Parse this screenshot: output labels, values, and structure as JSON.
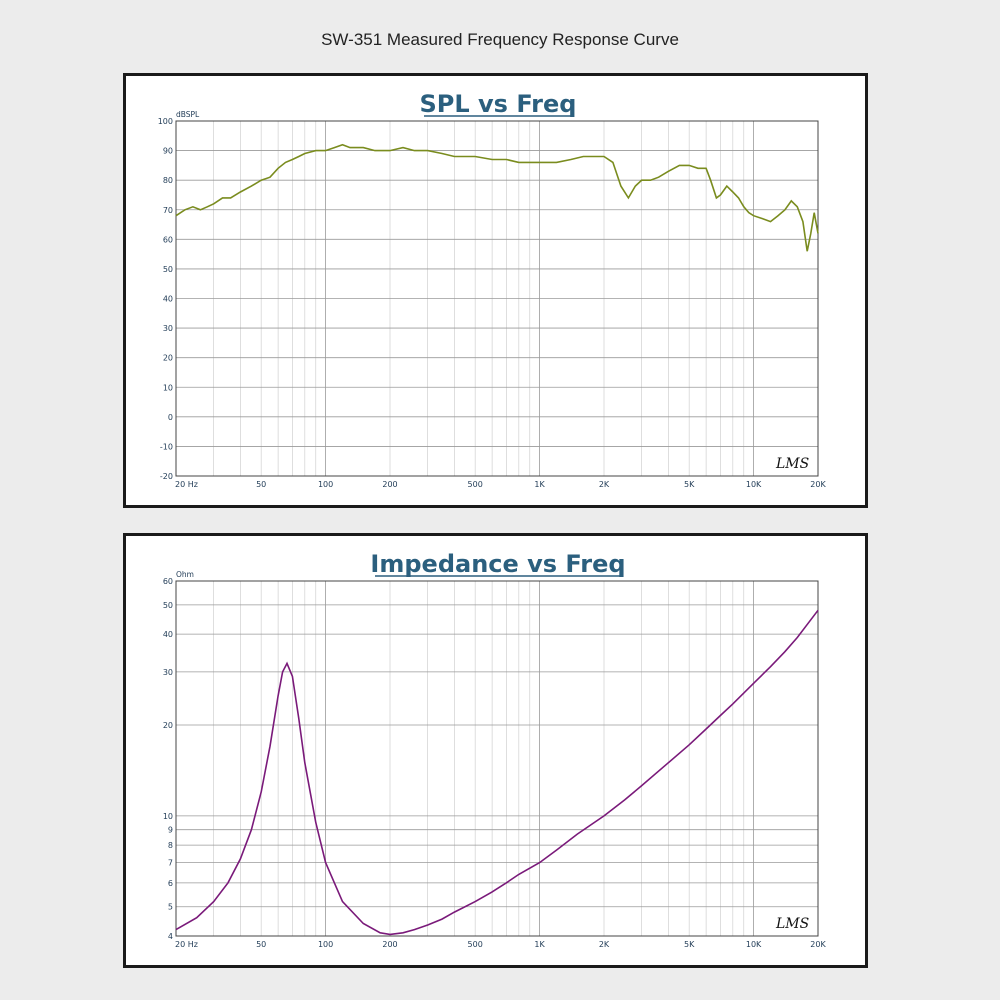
{
  "page_title": "SW-351 Measured Frequency Response Curve",
  "logo_text": "LMS",
  "colors": {
    "spl_curve": "#7a8c1e",
    "impedance_curve": "#7a1a7a",
    "title": "#2b5f7e",
    "tick_labels": "#1f3a55"
  },
  "chart_data": [
    {
      "type": "line",
      "title": "SPL vs Freq",
      "ylabel": "dBSPL",
      "xscale": "log",
      "xlim": [
        20,
        20000
      ],
      "ylim": [
        -20,
        100
      ],
      "grid": true,
      "x_tick_labels": [
        "20 Hz",
        "50",
        "100",
        "200",
        "500",
        "1K",
        "2K",
        "5K",
        "10K",
        "20K"
      ],
      "x_tick_values": [
        20,
        50,
        100,
        200,
        500,
        1000,
        2000,
        5000,
        10000,
        20000
      ],
      "y_tick_labels": [
        "100",
        "90",
        "80",
        "70",
        "60",
        "50",
        "40",
        "30",
        "20",
        "10",
        "0",
        "-10",
        "-20"
      ],
      "y_tick_values": [
        100,
        90,
        80,
        70,
        60,
        50,
        40,
        30,
        20,
        10,
        0,
        -10,
        -20
      ],
      "series": [
        {
          "x": [
            20,
            22,
            24,
            26,
            28,
            30,
            33,
            36,
            40,
            45,
            50,
            55,
            60,
            65,
            70,
            75,
            80,
            90,
            100,
            110,
            120,
            130,
            150,
            170,
            200,
            230,
            260,
            300,
            350,
            400,
            450,
            500,
            600,
            700,
            800,
            900,
            1000,
            1200,
            1400,
            1600,
            1800,
            2000,
            2200,
            2400,
            2600,
            2800,
            3000,
            3300,
            3600,
            4000,
            4500,
            5000,
            5500,
            6000,
            6300,
            6700,
            7000,
            7500,
            8000,
            8500,
            9000,
            9500,
            10000,
            11000,
            12000,
            13000,
            14000,
            15000,
            16000,
            17000,
            17800,
            18500,
            19200,
            20000
          ],
          "y": [
            68,
            70,
            71,
            70,
            71,
            72,
            74,
            74,
            76,
            78,
            80,
            81,
            84,
            86,
            87,
            88,
            89,
            90,
            90,
            91,
            92,
            91,
            91,
            90,
            90,
            91,
            90,
            90,
            89,
            88,
            88,
            88,
            87,
            87,
            86,
            86,
            86,
            86,
            87,
            88,
            88,
            88,
            86,
            78,
            74,
            78,
            80,
            80,
            81,
            83,
            85,
            85,
            84,
            84,
            80,
            74,
            75,
            78,
            76,
            74,
            71,
            69,
            68,
            67,
            66,
            68,
            70,
            73,
            71,
            66,
            56,
            62,
            69,
            62
          ]
        }
      ]
    },
    {
      "type": "line",
      "title": "Impedance vs Freq",
      "ylabel": "Ohm",
      "xscale": "log",
      "yscale": "log",
      "xlim": [
        20,
        20000
      ],
      "ylim": [
        4,
        60
      ],
      "grid": true,
      "x_tick_labels": [
        "20 Hz",
        "50",
        "100",
        "200",
        "500",
        "1K",
        "2K",
        "5K",
        "10K",
        "20K"
      ],
      "x_tick_values": [
        20,
        50,
        100,
        200,
        500,
        1000,
        2000,
        5000,
        10000,
        20000
      ],
      "y_tick_labels": [
        "60",
        "50",
        "40",
        "30",
        "20",
        "10",
        "9",
        "8",
        "7",
        "6",
        "5",
        "4"
      ],
      "y_tick_values": [
        60,
        50,
        40,
        30,
        20,
        10,
        9,
        8,
        7,
        6,
        5,
        4
      ],
      "series": [
        {
          "x": [
            20,
            25,
            30,
            35,
            40,
            45,
            50,
            55,
            60,
            63,
            66,
            70,
            75,
            80,
            90,
            100,
            120,
            150,
            180,
            200,
            230,
            260,
            300,
            350,
            400,
            500,
            600,
            700,
            800,
            1000,
            1200,
            1500,
            2000,
            2500,
            3000,
            4000,
            5000,
            6000,
            7000,
            8000,
            10000,
            12000,
            14000,
            16000,
            18000,
            20000
          ],
          "y": [
            4.2,
            4.6,
            5.2,
            6.0,
            7.2,
            9.0,
            12.0,
            17.0,
            25.0,
            30.0,
            32.0,
            29.0,
            21.0,
            15.0,
            9.5,
            7.0,
            5.2,
            4.4,
            4.1,
            4.05,
            4.1,
            4.2,
            4.35,
            4.55,
            4.8,
            5.2,
            5.6,
            6.0,
            6.4,
            7.0,
            7.7,
            8.7,
            10.0,
            11.3,
            12.6,
            15.0,
            17.2,
            19.4,
            21.5,
            23.5,
            27.5,
            31.2,
            35.0,
            39.0,
            43.5,
            48.0
          ]
        }
      ]
    }
  ]
}
